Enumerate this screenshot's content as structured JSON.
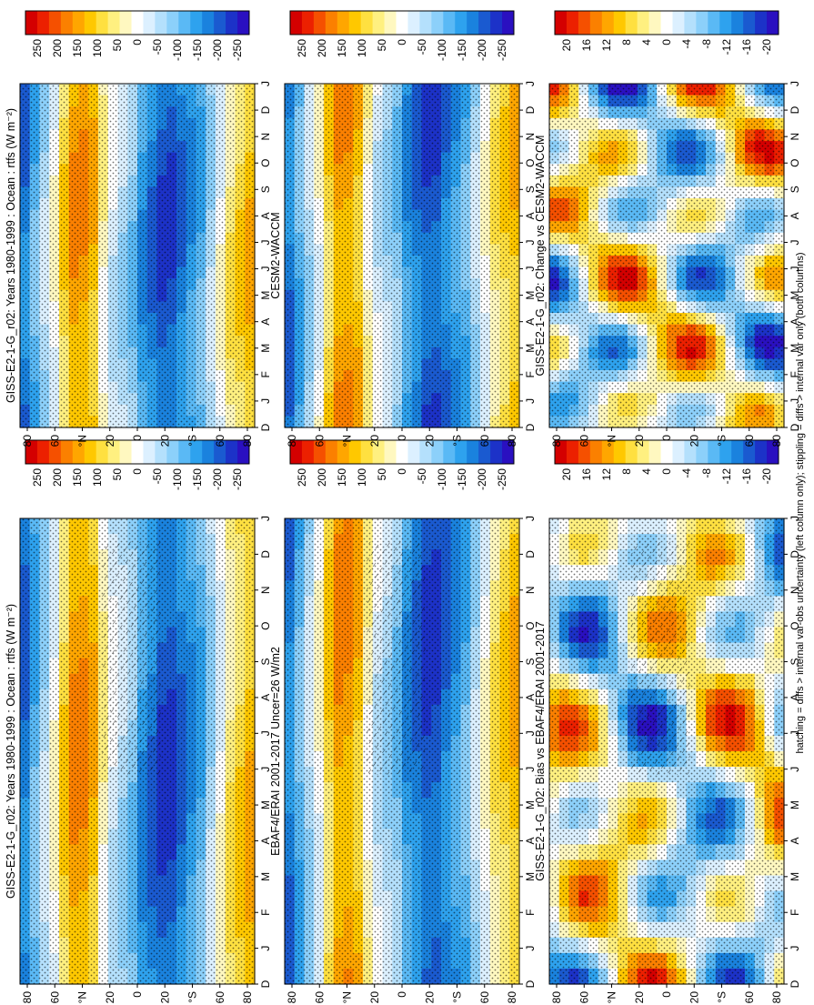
{
  "footnote": "hatching = diffs > internal var-obs uncertainty (left column only); stippling = diffs > internal var only (both columns)",
  "months": [
    "D",
    "J",
    "F",
    "M",
    "A",
    "M",
    "J",
    "J",
    "A",
    "S",
    "O",
    "N",
    "D",
    "J"
  ],
  "lat_ticks": [
    "80",
    "60",
    "°N",
    "20",
    "0",
    "20",
    "°S",
    "60",
    "80"
  ],
  "colors": {
    "reds": [
      "#d40000",
      "#ec2000",
      "#f55000",
      "#fb8000",
      "#ffa600",
      "#ffc800",
      "#ffe040",
      "#fff080",
      "#fff8c0"
    ],
    "white": "#ffffff",
    "blues": [
      "#dcf0ff",
      "#b4e0fc",
      "#8cd0fa",
      "#5ab9f5",
      "#2ea2ee",
      "#1a82de",
      "#1a5ad0",
      "#1c32c8",
      "#2a10c0"
    ]
  },
  "colorbars": {
    "flux": [
      "250",
      "200",
      "150",
      "100",
      "50",
      "0",
      "-50",
      "-100",
      "-150",
      "-200",
      "-250"
    ],
    "diff": [
      "20",
      "16",
      "12",
      "8",
      "4",
      "0",
      "-4",
      "-8",
      "-12",
      "-16",
      "-20"
    ]
  },
  "panels": [
    {
      "id": "model-left",
      "title": "GISS-E2-1-G_r02: Years 1980-1999 : Ocean : rtfs (W m⁻²)",
      "colorbar": "flux",
      "kind": "flux",
      "hatch": true
    },
    {
      "id": "model-right",
      "title": "GISS-E2-1-G_r02: Years 1980-1999 : Ocean : rtfs (W m⁻²)",
      "colorbar": "flux",
      "kind": "flux",
      "hatch": false
    },
    {
      "id": "obs-left",
      "title": "EBAF4/ERAI 2001-2017 Uncer=26 W/m2",
      "colorbar": "flux",
      "kind": "flux",
      "hatch": true
    },
    {
      "id": "ref-right",
      "title": "CESM2-WACCM",
      "colorbar": "flux",
      "kind": "flux",
      "hatch": false
    },
    {
      "id": "bias-left",
      "title": "GISS-E2-1-G_r02: Bias vs EBAF4/ERAI 2001-2017",
      "colorbar": "diff",
      "kind": "diff",
      "hatch": true
    },
    {
      "id": "change-right",
      "title": "GISS-E2-1-G_r02: Change vs CESM2-WACCM",
      "colorbar": "diff",
      "kind": "diff",
      "hatch": false
    }
  ],
  "chart_data": {
    "type": "heatmap",
    "x_axis": "month (D to J, seasonal cycle)",
    "y_axis": "latitude (80°N to 80°S)",
    "flux_colorbar_range": [
      -250,
      250
    ],
    "diff_colorbar_range": [
      -20,
      20
    ]
  }
}
